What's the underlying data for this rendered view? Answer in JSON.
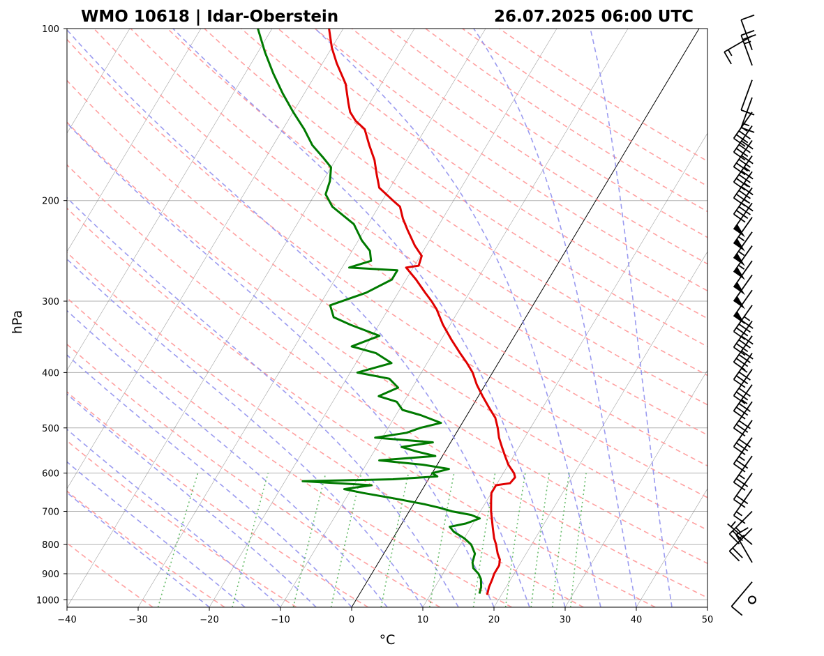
{
  "header": {
    "station": "WMO 10618 | Idar-Oberstein",
    "datetime": "26.07.2025 06:00 UTC"
  },
  "chart_data": {
    "type": "skew-t log-p sounding",
    "xlabel": "°C",
    "ylabel": "hPa",
    "x_ticks": [
      "−40",
      "−30",
      "−20",
      "−10",
      "0",
      "10",
      "20",
      "30",
      "40",
      "50"
    ],
    "y_ticks": [
      "100",
      "200",
      "300",
      "400",
      "500",
      "600",
      "700",
      "800",
      "900",
      "1000"
    ],
    "xlim": [
      -40,
      50
    ],
    "ylim_hpa": [
      1030,
      100
    ],
    "grid": true,
    "colors": {
      "temperature": "#e00000",
      "dewpoint": "#007a00",
      "dry_adiabats": "#ff9090",
      "moist_adiabats": "#9090ee",
      "mixing_ratio": "#4caf50",
      "isotherms": "#555555",
      "zero_isotherm": "#000000",
      "wind_barbs": "#000000"
    },
    "temperature_profile": [
      {
        "p": 980,
        "t": 18.0
      },
      {
        "p": 950,
        "t": 17.6
      },
      {
        "p": 920,
        "t": 17.4
      },
      {
        "p": 900,
        "t": 17.2
      },
      {
        "p": 870,
        "t": 17.2
      },
      {
        "p": 850,
        "t": 16.8
      },
      {
        "p": 830,
        "t": 16.0
      },
      {
        "p": 800,
        "t": 15.0
      },
      {
        "p": 780,
        "t": 14.2
      },
      {
        "p": 750,
        "t": 13.2
      },
      {
        "p": 720,
        "t": 12.2
      },
      {
        "p": 700,
        "t": 11.5
      },
      {
        "p": 670,
        "t": 10.6
      },
      {
        "p": 650,
        "t": 10.0
      },
      {
        "p": 630,
        "t": 10.0
      },
      {
        "p": 625,
        "t": 11.8
      },
      {
        "p": 610,
        "t": 12.0
      },
      {
        "p": 600,
        "t": 11.5
      },
      {
        "p": 580,
        "t": 10.0
      },
      {
        "p": 560,
        "t": 8.8
      },
      {
        "p": 540,
        "t": 7.6
      },
      {
        "p": 520,
        "t": 6.4
      },
      {
        "p": 500,
        "t": 5.4
      },
      {
        "p": 480,
        "t": 4.2
      },
      {
        "p": 460,
        "t": 2.4
      },
      {
        "p": 440,
        "t": 0.6
      },
      {
        "p": 420,
        "t": -1.2
      },
      {
        "p": 400,
        "t": -2.8
      },
      {
        "p": 385,
        "t": -4.4
      },
      {
        "p": 370,
        "t": -6.2
      },
      {
        "p": 350,
        "t": -8.6
      },
      {
        "p": 330,
        "t": -11.0
      },
      {
        "p": 310,
        "t": -13.2
      },
      {
        "p": 300,
        "t": -14.6
      },
      {
        "p": 290,
        "t": -16.2
      },
      {
        "p": 275,
        "t": -18.6
      },
      {
        "p": 262,
        "t": -21.0
      },
      {
        "p": 260,
        "t": -19.4
      },
      {
        "p": 250,
        "t": -19.8
      },
      {
        "p": 240,
        "t": -21.6
      },
      {
        "p": 225,
        "t": -24.0
      },
      {
        "p": 215,
        "t": -25.6
      },
      {
        "p": 205,
        "t": -27.0
      },
      {
        "p": 200,
        "t": -28.5
      },
      {
        "p": 190,
        "t": -31.5
      },
      {
        "p": 180,
        "t": -33.0
      },
      {
        "p": 170,
        "t": -34.5
      },
      {
        "p": 160,
        "t": -36.5
      },
      {
        "p": 150,
        "t": -38.5
      },
      {
        "p": 145,
        "t": -40.5
      },
      {
        "p": 140,
        "t": -42.0
      },
      {
        "p": 135,
        "t": -43.0
      },
      {
        "p": 125,
        "t": -45.0
      },
      {
        "p": 115,
        "t": -48.0
      },
      {
        "p": 108,
        "t": -50.0
      },
      {
        "p": 100,
        "t": -52.0
      }
    ],
    "dewpoint_profile": [
      {
        "p": 975,
        "t": 16.8
      },
      {
        "p": 950,
        "t": 16.5
      },
      {
        "p": 920,
        "t": 15.8
      },
      {
        "p": 900,
        "t": 15.0
      },
      {
        "p": 880,
        "t": 13.8
      },
      {
        "p": 860,
        "t": 13.2
      },
      {
        "p": 830,
        "t": 12.8
      },
      {
        "p": 800,
        "t": 11.5
      },
      {
        "p": 780,
        "t": 10.0
      },
      {
        "p": 760,
        "t": 8.0
      },
      {
        "p": 745,
        "t": 7.0
      },
      {
        "p": 735,
        "t": 9.0
      },
      {
        "p": 720,
        "t": 10.5
      },
      {
        "p": 710,
        "t": 9.0
      },
      {
        "p": 700,
        "t": 6.0
      },
      {
        "p": 690,
        "t": 4.0
      },
      {
        "p": 680,
        "t": 1.5
      },
      {
        "p": 665,
        "t": -3.0
      },
      {
        "p": 650,
        "t": -8.0
      },
      {
        "p": 640,
        "t": -11.0
      },
      {
        "p": 630,
        "t": -7.5
      },
      {
        "p": 620,
        "t": -17.5
      },
      {
        "p": 615,
        "t": -5.0
      },
      {
        "p": 608,
        "t": 1.0
      },
      {
        "p": 600,
        "t": 0.0
      },
      {
        "p": 590,
        "t": 2.0
      },
      {
        "p": 580,
        "t": -2.0
      },
      {
        "p": 570,
        "t": -8.5
      },
      {
        "p": 560,
        "t": -1.0
      },
      {
        "p": 550,
        "t": -4.0
      },
      {
        "p": 540,
        "t": -6.5
      },
      {
        "p": 530,
        "t": -2.5
      },
      {
        "p": 520,
        "t": -11.0
      },
      {
        "p": 510,
        "t": -7.0
      },
      {
        "p": 500,
        "t": -5.5
      },
      {
        "p": 490,
        "t": -3.0
      },
      {
        "p": 475,
        "t": -6.5
      },
      {
        "p": 465,
        "t": -9.5
      },
      {
        "p": 450,
        "t": -11.0
      },
      {
        "p": 440,
        "t": -14.0
      },
      {
        "p": 425,
        "t": -12.0
      },
      {
        "p": 410,
        "t": -14.0
      },
      {
        "p": 400,
        "t": -19.0
      },
      {
        "p": 385,
        "t": -15.0
      },
      {
        "p": 370,
        "t": -18.0
      },
      {
        "p": 360,
        "t": -22.0
      },
      {
        "p": 345,
        "t": -19.0
      },
      {
        "p": 330,
        "t": -24.0
      },
      {
        "p": 320,
        "t": -27.0
      },
      {
        "p": 305,
        "t": -28.5
      },
      {
        "p": 290,
        "t": -24.5
      },
      {
        "p": 275,
        "t": -22.0
      },
      {
        "p": 265,
        "t": -22.0
      },
      {
        "p": 262,
        "t": -29.0
      },
      {
        "p": 255,
        "t": -26.5
      },
      {
        "p": 245,
        "t": -27.5
      },
      {
        "p": 235,
        "t": -29.5
      },
      {
        "p": 220,
        "t": -32.0
      },
      {
        "p": 205,
        "t": -36.5
      },
      {
        "p": 195,
        "t": -38.5
      },
      {
        "p": 185,
        "t": -39.0
      },
      {
        "p": 175,
        "t": -40.0
      },
      {
        "p": 168,
        "t": -42.0
      },
      {
        "p": 160,
        "t": -44.5
      },
      {
        "p": 150,
        "t": -47.0
      },
      {
        "p": 140,
        "t": -50.0
      },
      {
        "p": 130,
        "t": -53.0
      },
      {
        "p": 120,
        "t": -56.0
      },
      {
        "p": 110,
        "t": -59.0
      },
      {
        "p": 100,
        "t": -62.0
      }
    ],
    "wind_barbs": [
      {
        "p": 1000,
        "speed_kt": 0,
        "dir_deg": 0
      },
      {
        "p": 930,
        "speed_kt": 10,
        "dir_deg": 220
      },
      {
        "p": 860,
        "speed_kt": 15,
        "dir_deg": 330
      },
      {
        "p": 800,
        "speed_kt": 5,
        "dir_deg": 310
      },
      {
        "p": 750,
        "speed_kt": 20,
        "dir_deg": 225
      },
      {
        "p": 700,
        "speed_kt": 25,
        "dir_deg": 225
      },
      {
        "p": 640,
        "speed_kt": 15,
        "dir_deg": 215
      },
      {
        "p": 600,
        "speed_kt": 20,
        "dir_deg": 215
      },
      {
        "p": 560,
        "speed_kt": 25,
        "dir_deg": 215
      },
      {
        "p": 520,
        "speed_kt": 25,
        "dir_deg": 215
      },
      {
        "p": 485,
        "speed_kt": 30,
        "dir_deg": 215
      },
      {
        "p": 450,
        "speed_kt": 30,
        "dir_deg": 215
      },
      {
        "p": 420,
        "speed_kt": 35,
        "dir_deg": 215
      },
      {
        "p": 395,
        "speed_kt": 30,
        "dir_deg": 215
      },
      {
        "p": 370,
        "speed_kt": 35,
        "dir_deg": 215
      },
      {
        "p": 345,
        "speed_kt": 40,
        "dir_deg": 215
      },
      {
        "p": 325,
        "speed_kt": 40,
        "dir_deg": 215
      },
      {
        "p": 305,
        "speed_kt": 45,
        "dir_deg": 215
      },
      {
        "p": 287,
        "speed_kt": 50,
        "dir_deg": 215
      },
      {
        "p": 270,
        "speed_kt": 50,
        "dir_deg": 215
      },
      {
        "p": 255,
        "speed_kt": 50,
        "dir_deg": 215
      },
      {
        "p": 240,
        "speed_kt": 55,
        "dir_deg": 215
      },
      {
        "p": 227,
        "speed_kt": 55,
        "dir_deg": 215
      },
      {
        "p": 214,
        "speed_kt": 55,
        "dir_deg": 215
      },
      {
        "p": 202,
        "speed_kt": 50,
        "dir_deg": 215
      },
      {
        "p": 190,
        "speed_kt": 45,
        "dir_deg": 215
      },
      {
        "p": 178,
        "speed_kt": 45,
        "dir_deg": 215
      },
      {
        "p": 167,
        "speed_kt": 45,
        "dir_deg": 215
      },
      {
        "p": 157,
        "speed_kt": 40,
        "dir_deg": 215
      },
      {
        "p": 148,
        "speed_kt": 40,
        "dir_deg": 215
      },
      {
        "p": 140,
        "speed_kt": 35,
        "dir_deg": 215
      },
      {
        "p": 132,
        "speed_kt": 15,
        "dir_deg": 200
      },
      {
        "p": 123,
        "speed_kt": 10,
        "dir_deg": 200
      },
      {
        "p": 116,
        "speed_kt": 25,
        "dir_deg": 340
      },
      {
        "p": 109,
        "speed_kt": 10,
        "dir_deg": 340
      },
      {
        "p": 103,
        "speed_kt": 15,
        "dir_deg": 240
      }
    ]
  }
}
